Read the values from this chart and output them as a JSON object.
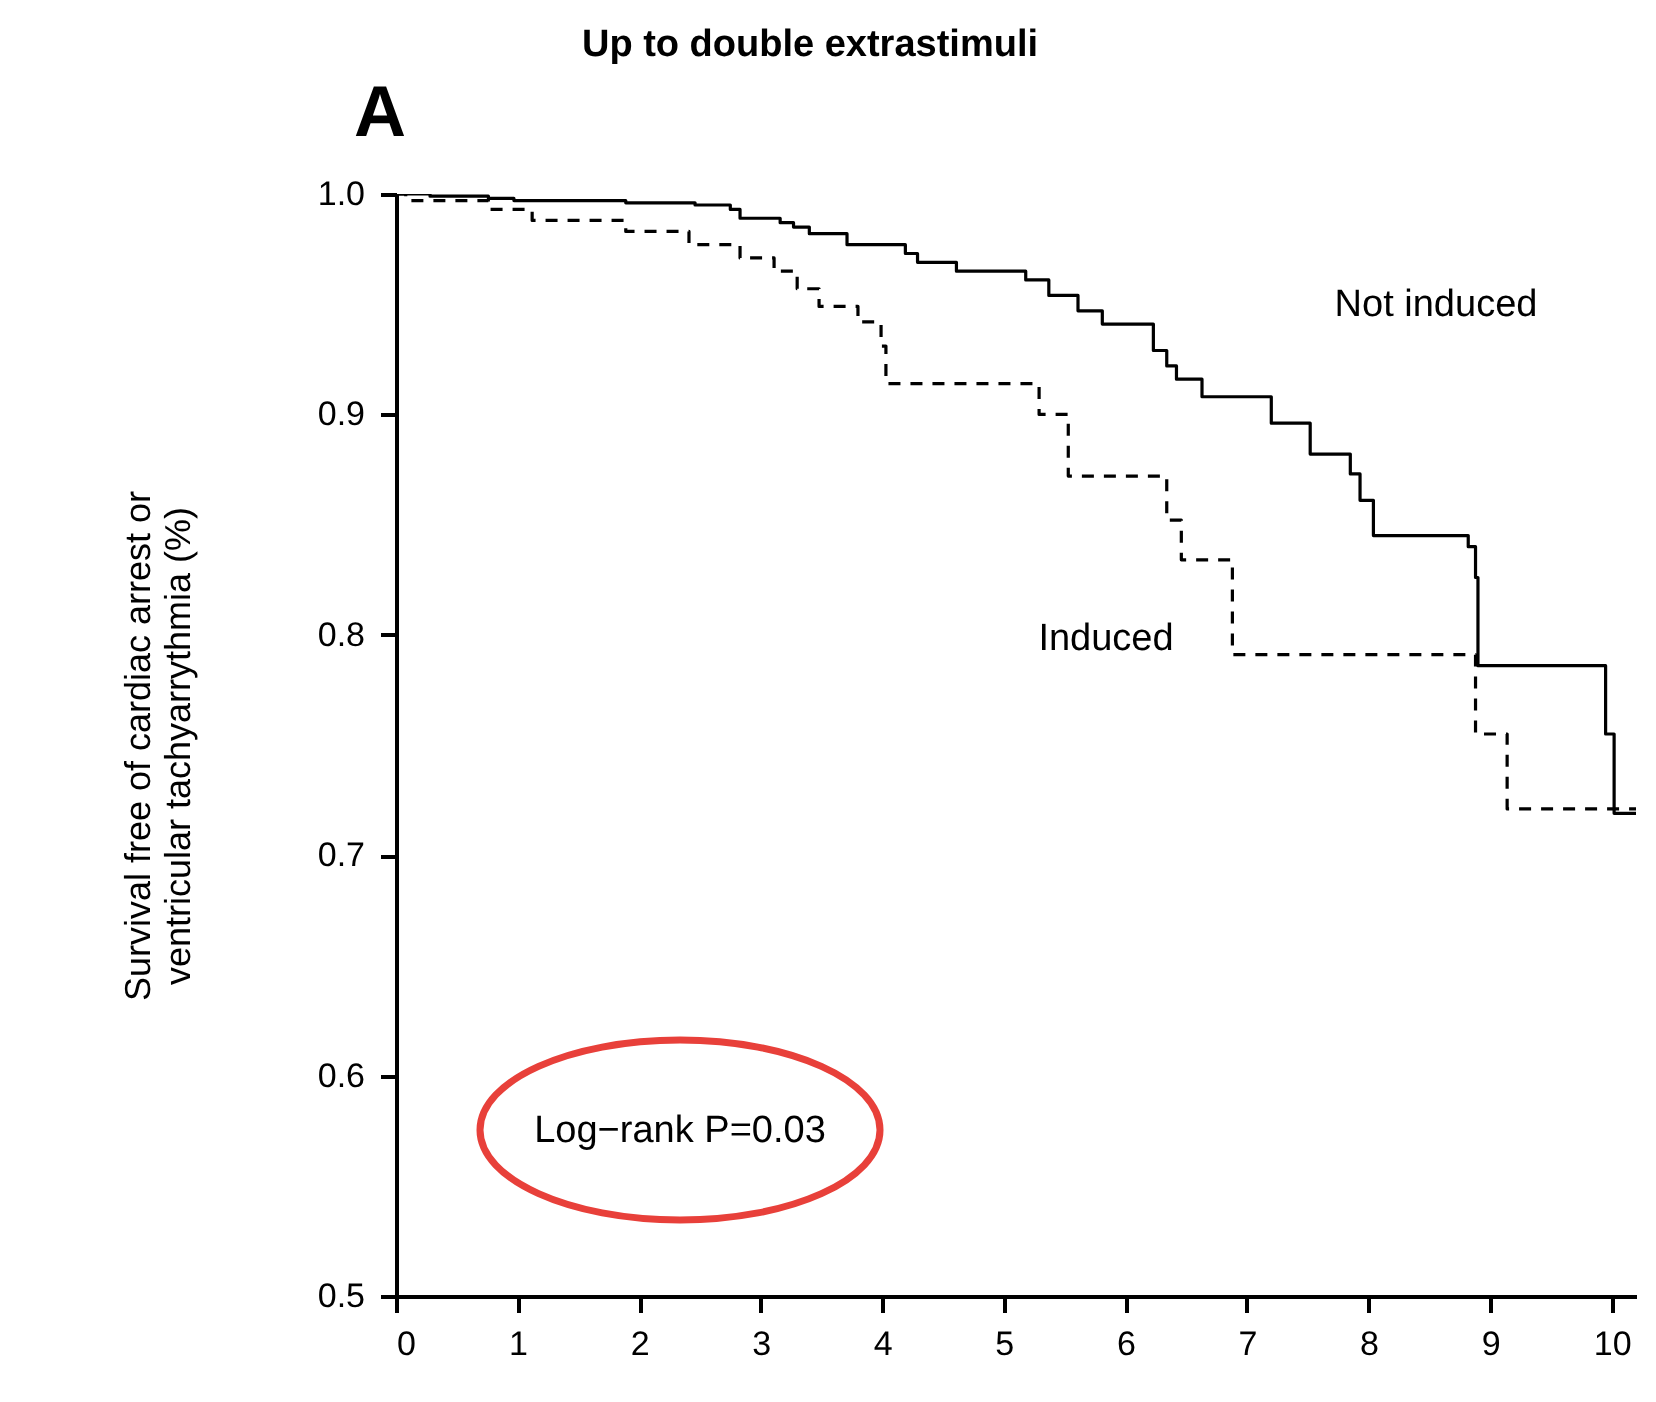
{
  "chart_data": {
    "type": "step",
    "title": "Up to double extrastimuli",
    "ylabel": "Survival free of cardiac arrest or\nventricular tachyarrythmia (%)",
    "annotations": [
      "A",
      "Log−rank P=0.03"
    ],
    "xlim": [
      0,
      10.2
    ],
    "xticks": [
      0,
      1,
      2,
      3,
      4,
      5,
      6,
      7,
      8,
      9,
      10
    ],
    "ylim": [
      0.5,
      1.0
    ],
    "yticks": [
      {
        "value": 0.5,
        "label": "0.5"
      },
      {
        "value": 0.6,
        "label": "0.6"
      },
      {
        "value": 0.7,
        "label": "0.7"
      },
      {
        "value": 0.8,
        "label": "0.8"
      },
      {
        "value": 0.9,
        "label": "0.9"
      },
      {
        "value": 1.0,
        "label": "1.0"
      }
    ],
    "grid": false,
    "series": [
      {
        "name": "Not induced",
        "color": "#000000",
        "line_style": "solid",
        "x": [
          0,
          0.28,
          0.76,
          0.97,
          1.89,
          2.46,
          2.75,
          2.83,
          3.16,
          3.27,
          3.4,
          3.71,
          4.19,
          4.29,
          4.61,
          5.18,
          5.37,
          5.61,
          5.81,
          6.23,
          6.34,
          6.42,
          6.63,
          7.2,
          7.52,
          7.85,
          7.93,
          8.04,
          8.82,
          8.88,
          8.9,
          9.95,
          10.02,
          10.2
        ],
        "values": [
          1.0,
          0.999,
          0.998,
          0.997,
          0.996,
          0.995,
          0.993,
          0.989,
          0.987,
          0.985,
          0.982,
          0.977,
          0.973,
          0.969,
          0.965,
          0.961,
          0.954,
          0.947,
          0.941,
          0.929,
          0.922,
          0.916,
          0.908,
          0.896,
          0.882,
          0.873,
          0.861,
          0.845,
          0.84,
          0.826,
          0.786,
          0.755,
          0.719,
          0.719
        ]
      },
      {
        "name": "Induced",
        "color": "#000000",
        "line_style": "dashed",
        "x": [
          0,
          0.08,
          0.76,
          1.12,
          1.89,
          2.41,
          2.83,
          3.11,
          3.3,
          3.48,
          3.8,
          3.99,
          4.03,
          5.29,
          5.53,
          6.34,
          6.46,
          6.88,
          8.88,
          9.14,
          10.2
        ],
        "values": [
          1.0,
          0.997,
          0.993,
          0.988,
          0.983,
          0.977,
          0.971,
          0.965,
          0.957,
          0.949,
          0.942,
          0.931,
          0.914,
          0.9,
          0.872,
          0.852,
          0.834,
          0.791,
          0.755,
          0.721,
          0.721
        ]
      }
    ]
  }
}
